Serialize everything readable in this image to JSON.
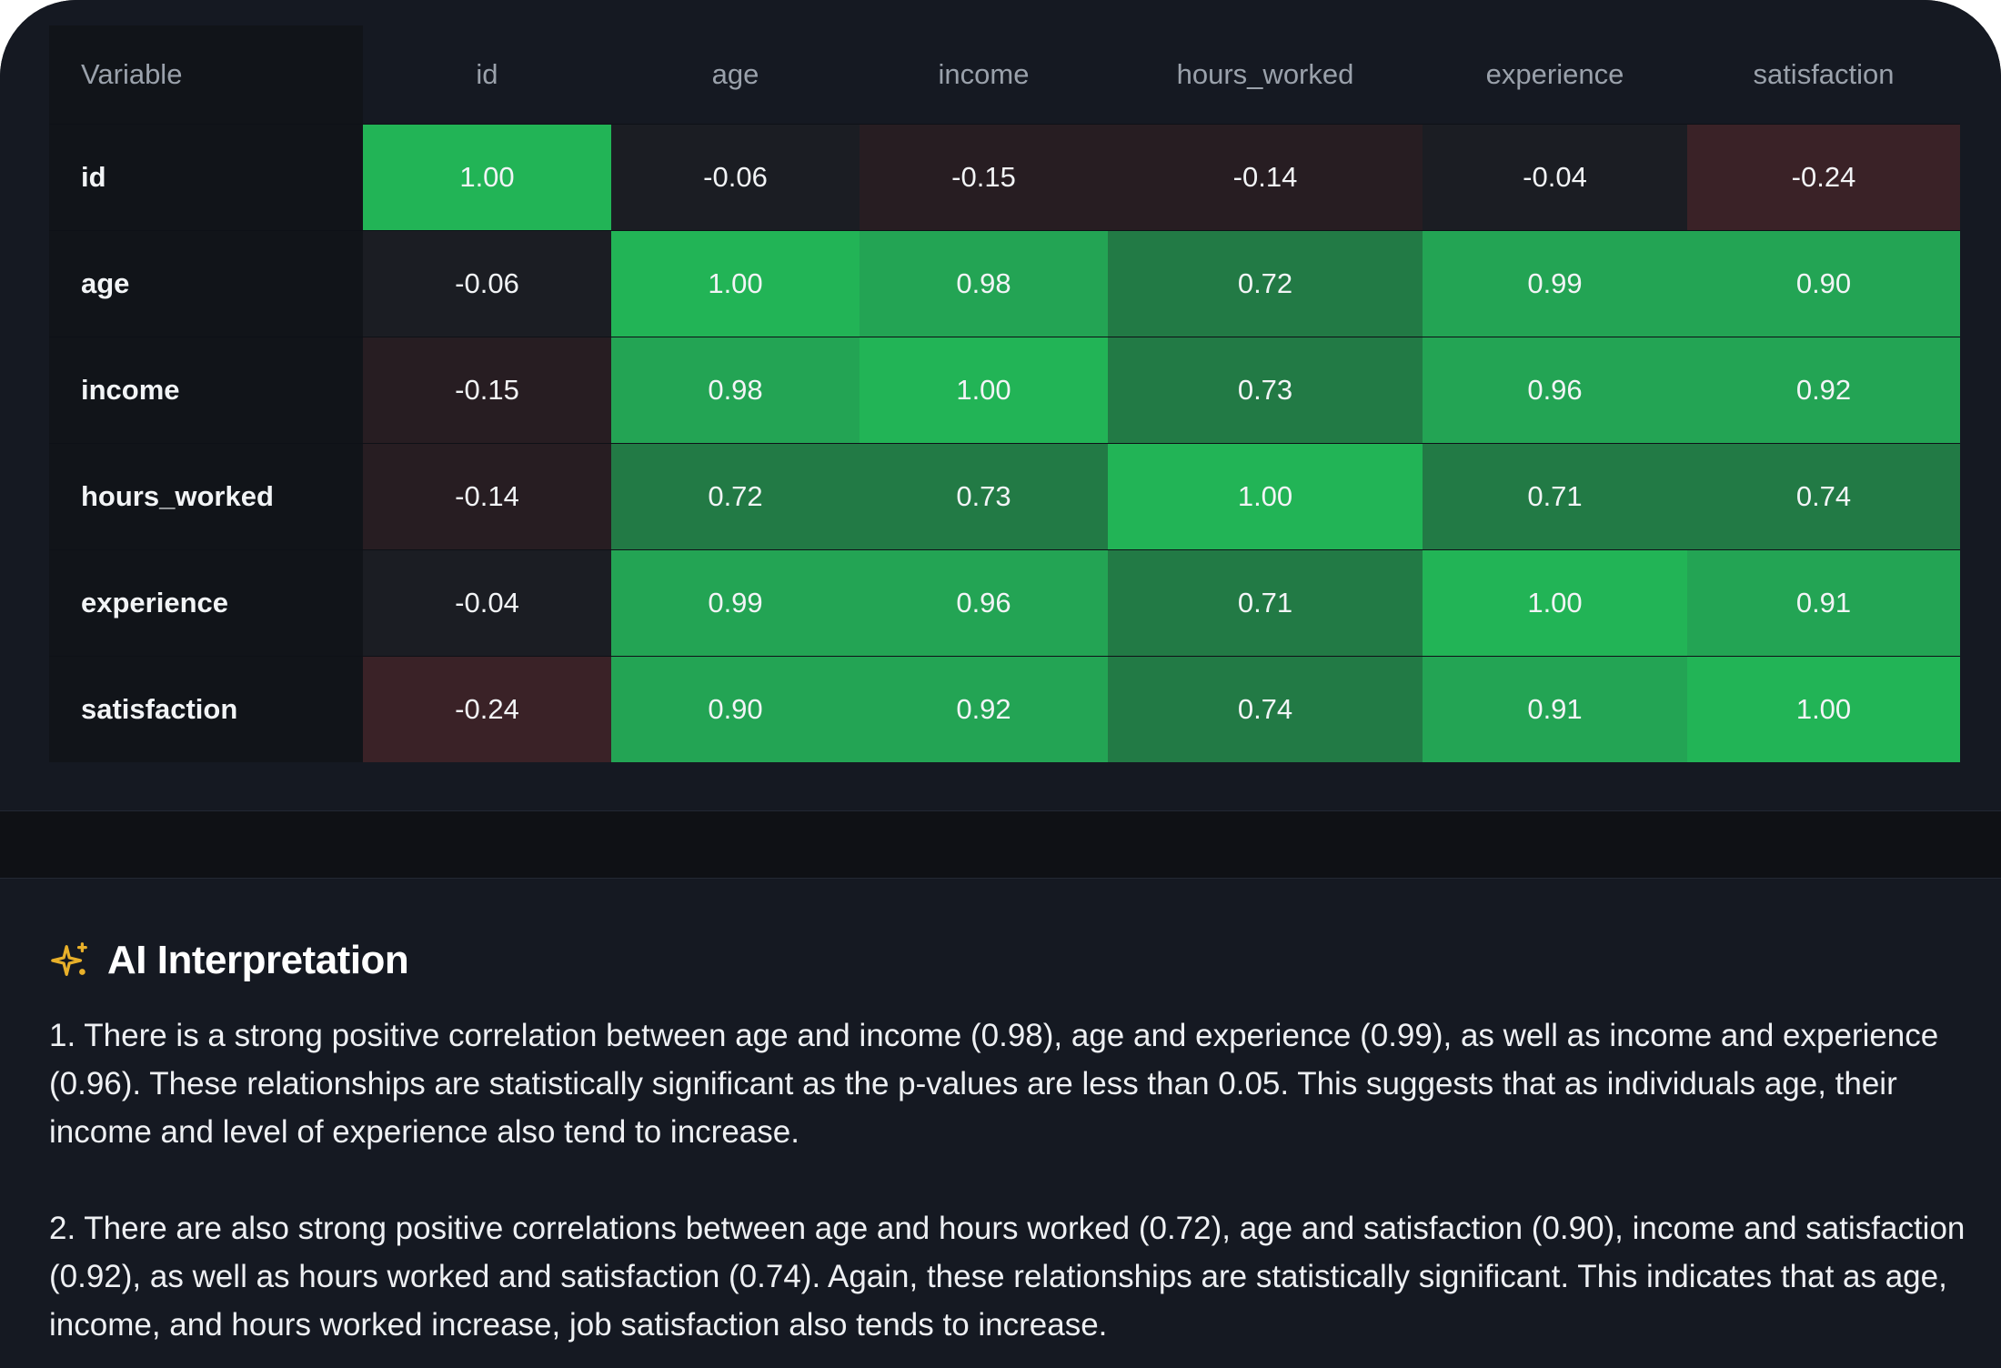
{
  "table": {
    "corner_label": "Variable",
    "columns": [
      "id",
      "age",
      "income",
      "hours_worked",
      "experience",
      "satisfaction"
    ],
    "rows": [
      {
        "label": "id",
        "cells": [
          "1.00",
          "-0.06",
          "-0.15",
          "-0.14",
          "-0.04",
          "-0.24"
        ]
      },
      {
        "label": "age",
        "cells": [
          "-0.06",
          "1.00",
          "0.98",
          "0.72",
          "0.99",
          "0.90"
        ]
      },
      {
        "label": "income",
        "cells": [
          "-0.15",
          "0.98",
          "1.00",
          "0.73",
          "0.96",
          "0.92"
        ]
      },
      {
        "label": "hours_worked",
        "cells": [
          "-0.14",
          "0.72",
          "0.73",
          "1.00",
          "0.71",
          "0.74"
        ]
      },
      {
        "label": "experience",
        "cells": [
          "-0.04",
          "0.99",
          "0.96",
          "0.71",
          "1.00",
          "0.91"
        ]
      },
      {
        "label": "satisfaction",
        "cells": [
          "-0.24",
          "0.90",
          "0.92",
          "0.74",
          "0.91",
          "1.00"
        ]
      }
    ]
  },
  "colors": {
    "strong_positive": "#23a454",
    "moderate_positive": "#227a45",
    "diagonal_highlight": "#22b456",
    "neutral": "#1b1d23",
    "weak_negative": "#271d22",
    "negative": "#3a2227",
    "accent_sparkle": "#e8b02a"
  },
  "ai": {
    "icon": "sparkle-icon",
    "title": "AI Interpretation",
    "paragraph_1": "1. There is a strong positive correlation between age and income (0.98), age and experience (0.99), as well as income and experience (0.96). These relationships are statistically significant as the p-values are less than 0.05. This suggests that as individuals age, their income and level of experience also tend to increase.",
    "paragraph_2": "2. There are also strong positive correlations between age and hours worked (0.72), age and satisfaction (0.90), income and satisfaction (0.92), as well as hours worked and satisfaction (0.74). Again, these relationships are statistically significant. This indicates that as age, income, and hours worked increase, job satisfaction also tends to increase."
  }
}
